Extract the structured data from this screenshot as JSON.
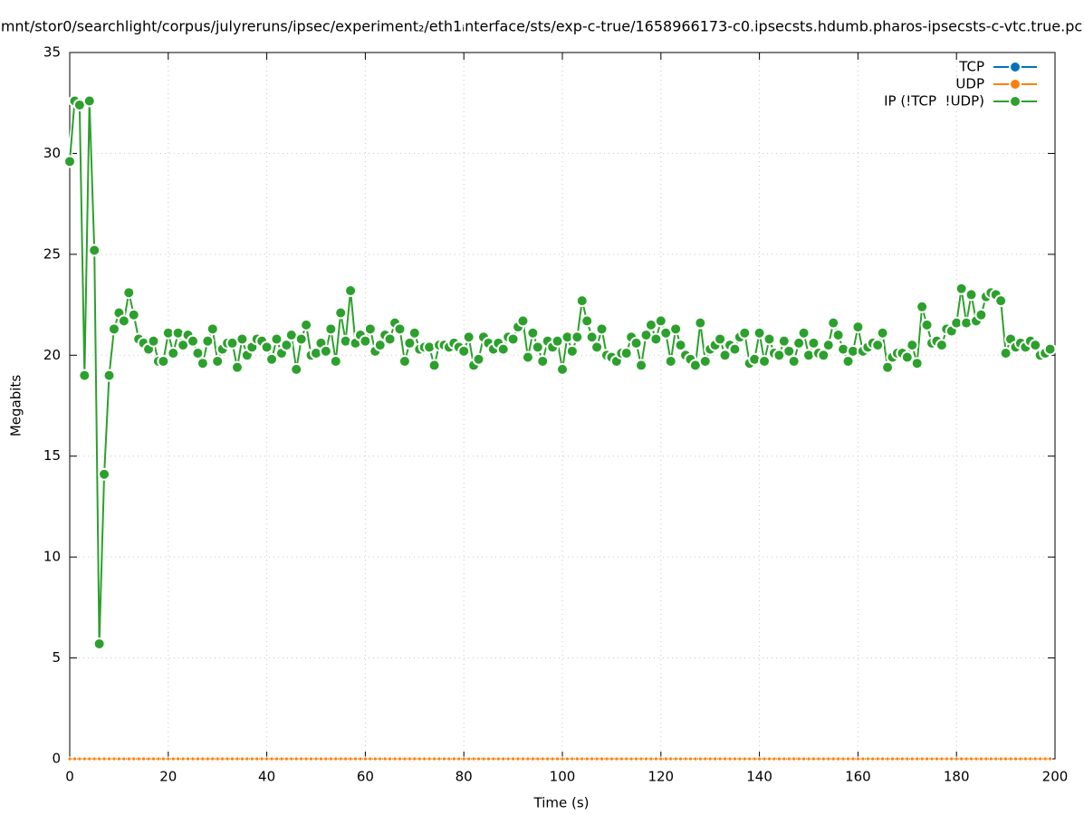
{
  "chart_data": {
    "type": "line",
    "title": "mnt/stor0/searchlight/corpus/julyreruns/ipsec/experiment₂/eth1ᵢnterface/sts/exp-c-true/1658966173-c0.ipsecsts.hdumb.pharos-ipsecsts-c-vtc.true.pc",
    "x_label": "Time (s)",
    "y_label": "Megabits",
    "xlim": [
      0,
      200
    ],
    "ylim": [
      0,
      35
    ],
    "xticks": [
      0,
      20,
      40,
      60,
      80,
      100,
      120,
      140,
      160,
      180,
      200
    ],
    "yticks": [
      0,
      5,
      10,
      15,
      20,
      25,
      30,
      35
    ],
    "grid": true,
    "legend": "top-right",
    "x": [
      0,
      1,
      2,
      3,
      4,
      5,
      6,
      7,
      8,
      9,
      10,
      11,
      12,
      13,
      14,
      15,
      16,
      17,
      18,
      19,
      20,
      21,
      22,
      23,
      24,
      25,
      26,
      27,
      28,
      29,
      30,
      31,
      32,
      33,
      34,
      35,
      36,
      37,
      38,
      39,
      40,
      41,
      42,
      43,
      44,
      45,
      46,
      47,
      48,
      49,
      50,
      51,
      52,
      53,
      54,
      55,
      56,
      57,
      58,
      59,
      60,
      61,
      62,
      63,
      64,
      65,
      66,
      67,
      68,
      69,
      70,
      71,
      72,
      73,
      74,
      75,
      76,
      77,
      78,
      79,
      80,
      81,
      82,
      83,
      84,
      85,
      86,
      87,
      88,
      89,
      90,
      91,
      92,
      93,
      94,
      95,
      96,
      97,
      98,
      99,
      100,
      101,
      102,
      103,
      104,
      105,
      106,
      107,
      108,
      109,
      110,
      111,
      112,
      113,
      114,
      115,
      116,
      117,
      118,
      119,
      120,
      121,
      122,
      123,
      124,
      125,
      126,
      127,
      128,
      129,
      130,
      131,
      132,
      133,
      134,
      135,
      136,
      137,
      138,
      139,
      140,
      141,
      142,
      143,
      144,
      145,
      146,
      147,
      148,
      149,
      150,
      151,
      152,
      153,
      154,
      155,
      156,
      157,
      158,
      159,
      160,
      161,
      162,
      163,
      164,
      165,
      166,
      167,
      168,
      169,
      170,
      171,
      172,
      173,
      174,
      175,
      176,
      177,
      178,
      179,
      180,
      181,
      182,
      183,
      184,
      185,
      186,
      187,
      188,
      189,
      190,
      191,
      192,
      193,
      194,
      195,
      196,
      197,
      198,
      199
    ],
    "series": [
      {
        "name": "TCP",
        "color": "#0072bd",
        "values": [
          0,
          0,
          0,
          0,
          0,
          0,
          0,
          0,
          0,
          0,
          0,
          0,
          0,
          0,
          0,
          0,
          0,
          0,
          0,
          0,
          0,
          0,
          0,
          0,
          0,
          0,
          0,
          0,
          0,
          0,
          0,
          0,
          0,
          0,
          0,
          0,
          0,
          0,
          0,
          0,
          0,
          0,
          0,
          0,
          0,
          0,
          0,
          0,
          0,
          0,
          0,
          0,
          0,
          0,
          0,
          0,
          0,
          0,
          0,
          0,
          0,
          0,
          0,
          0,
          0,
          0,
          0,
          0,
          0,
          0,
          0,
          0,
          0,
          0,
          0,
          0,
          0,
          0,
          0,
          0,
          0,
          0,
          0,
          0,
          0,
          0,
          0,
          0,
          0,
          0,
          0,
          0,
          0,
          0,
          0,
          0,
          0,
          0,
          0,
          0,
          0,
          0,
          0,
          0,
          0,
          0,
          0,
          0,
          0,
          0,
          0,
          0,
          0,
          0,
          0,
          0,
          0,
          0,
          0,
          0,
          0,
          0,
          0,
          0,
          0,
          0,
          0,
          0,
          0,
          0,
          0,
          0,
          0,
          0,
          0,
          0,
          0,
          0,
          0,
          0,
          0,
          0,
          0,
          0,
          0,
          0,
          0,
          0,
          0,
          0,
          0,
          0,
          0,
          0,
          0,
          0,
          0,
          0,
          0,
          0,
          0,
          0,
          0,
          0,
          0,
          0,
          0,
          0,
          0,
          0,
          0,
          0,
          0,
          0,
          0,
          0,
          0,
          0,
          0,
          0,
          0,
          0,
          0,
          0,
          0,
          0,
          0,
          0,
          0,
          0,
          0,
          0,
          0,
          0,
          0,
          0,
          0,
          0,
          0,
          0
        ]
      },
      {
        "name": "UDP",
        "color": "#ff7f0e",
        "values": [
          0,
          0,
          0,
          0,
          0,
          0,
          0,
          0,
          0,
          0,
          0,
          0,
          0,
          0,
          0,
          0,
          0,
          0,
          0,
          0,
          0,
          0,
          0,
          0,
          0,
          0,
          0,
          0,
          0,
          0,
          0,
          0,
          0,
          0,
          0,
          0,
          0,
          0,
          0,
          0,
          0,
          0,
          0,
          0,
          0,
          0,
          0,
          0,
          0,
          0,
          0,
          0,
          0,
          0,
          0,
          0,
          0,
          0,
          0,
          0,
          0,
          0,
          0,
          0,
          0,
          0,
          0,
          0,
          0,
          0,
          0,
          0,
          0,
          0,
          0,
          0,
          0,
          0,
          0,
          0,
          0,
          0,
          0,
          0,
          0,
          0,
          0,
          0,
          0,
          0,
          0,
          0,
          0,
          0,
          0,
          0,
          0,
          0,
          0,
          0,
          0,
          0,
          0,
          0,
          0,
          0,
          0,
          0,
          0,
          0,
          0,
          0,
          0,
          0,
          0,
          0,
          0,
          0,
          0,
          0,
          0,
          0,
          0,
          0,
          0,
          0,
          0,
          0,
          0,
          0,
          0,
          0,
          0,
          0,
          0,
          0,
          0,
          0,
          0,
          0,
          0,
          0,
          0,
          0,
          0,
          0,
          0,
          0,
          0,
          0,
          0,
          0,
          0,
          0,
          0,
          0,
          0,
          0,
          0,
          0,
          0,
          0,
          0,
          0,
          0,
          0,
          0,
          0,
          0,
          0,
          0,
          0,
          0,
          0,
          0,
          0,
          0,
          0,
          0,
          0,
          0,
          0,
          0,
          0,
          0,
          0,
          0,
          0,
          0,
          0,
          0,
          0,
          0,
          0,
          0,
          0,
          0,
          0,
          0,
          0
        ]
      },
      {
        "name": "IP (!TCP  !UDP)",
        "color": "#2ca02c",
        "values": [
          29.6,
          32.6,
          32.4,
          19.0,
          32.6,
          25.2,
          5.7,
          14.1,
          19.0,
          21.3,
          22.1,
          21.7,
          23.1,
          22.0,
          20.8,
          20.6,
          20.3,
          20.7,
          19.7,
          19.7,
          21.1,
          20.1,
          21.1,
          20.5,
          21.0,
          20.7,
          20.1,
          19.6,
          20.7,
          21.3,
          19.7,
          20.3,
          20.6,
          20.6,
          19.4,
          20.8,
          20.0,
          20.4,
          20.8,
          20.7,
          20.4,
          19.8,
          20.8,
          20.1,
          20.5,
          21.0,
          19.3,
          20.8,
          21.5,
          20.0,
          20.1,
          20.6,
          20.2,
          21.3,
          19.7,
          22.1,
          20.7,
          23.2,
          20.6,
          21.0,
          20.7,
          21.3,
          20.2,
          20.5,
          21.0,
          20.8,
          21.6,
          21.3,
          19.7,
          20.6,
          21.1,
          20.3,
          20.4,
          20.4,
          19.5,
          20.5,
          20.5,
          20.4,
          20.6,
          20.4,
          20.2,
          20.9,
          19.5,
          19.8,
          20.9,
          20.6,
          20.3,
          20.6,
          20.3,
          20.9,
          20.8,
          21.4,
          21.7,
          19.9,
          21.1,
          20.4,
          19.7,
          20.7,
          20.4,
          20.7,
          19.3,
          20.9,
          20.2,
          20.9,
          22.7,
          21.7,
          20.9,
          20.4,
          21.3,
          20.0,
          19.9,
          19.7,
          20.1,
          20.1,
          20.9,
          20.6,
          19.5,
          21.0,
          21.5,
          20.8,
          21.7,
          21.1,
          19.7,
          21.3,
          20.5,
          20.0,
          19.8,
          19.5,
          21.6,
          19.7,
          20.3,
          20.5,
          20.8,
          20.0,
          20.5,
          20.3,
          20.9,
          21.1,
          19.6,
          19.8,
          21.1,
          19.7,
          20.8,
          20.1,
          20.0,
          20.7,
          20.2,
          19.7,
          20.6,
          21.1,
          20.0,
          20.6,
          20.1,
          20.0,
          20.5,
          21.6,
          21.0,
          20.3,
          19.7,
          20.2,
          21.4,
          20.2,
          20.4,
          20.6,
          20.5,
          21.1,
          19.4,
          19.9,
          20.1,
          20.1,
          19.9,
          20.5,
          19.6,
          22.4,
          21.5,
          20.6,
          20.7,
          20.5,
          21.3,
          21.2,
          21.6,
          23.3,
          21.6,
          23.0,
          21.7,
          22.0,
          22.9,
          23.1,
          23.0,
          22.7,
          20.1,
          20.8,
          20.4,
          20.6,
          20.4,
          20.7,
          20.5,
          20.0,
          20.1,
          20.3
        ]
      }
    ]
  }
}
